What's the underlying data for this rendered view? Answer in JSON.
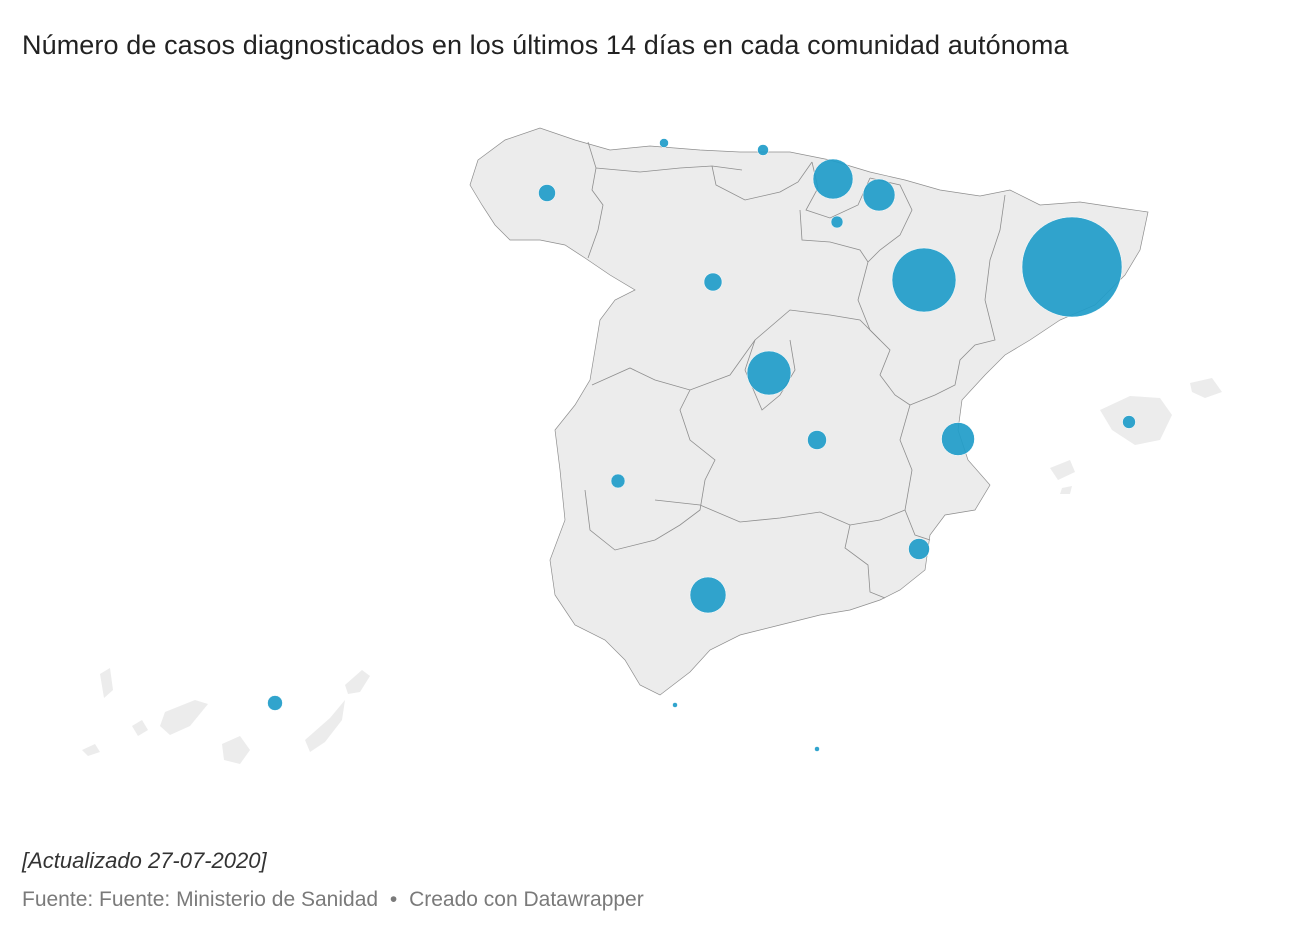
{
  "title": "Número de casos diagnosticados en los últimos 14 días en cada comunidad autónoma",
  "note": "[Actualizado 27-07-2020]",
  "source_prefix": "Fuente: Fuente: Ministerio de Sanidad",
  "separator": "•",
  "credit": "Creado con Datawrapper",
  "colors": {
    "bubble": "#1f9cc9",
    "land": "#ececec",
    "border": "#8e8e8e"
  },
  "map": {
    "type": "bubble-map",
    "bubbles": [
      {
        "region": "asturias"
      },
      {
        "region": "cantabria"
      },
      {
        "region": "galicia"
      },
      {
        "region": "pais-vasco"
      },
      {
        "region": "navarra"
      },
      {
        "region": "la-rioja"
      },
      {
        "region": "aragon"
      },
      {
        "region": "cataluna"
      },
      {
        "region": "castilla-y-leon"
      },
      {
        "region": "madrid"
      },
      {
        "region": "castilla-la-mancha"
      },
      {
        "region": "comunidad-valenciana"
      },
      {
        "region": "baleares"
      },
      {
        "region": "extremadura"
      },
      {
        "region": "murcia"
      },
      {
        "region": "andalucia"
      },
      {
        "region": "canarias"
      },
      {
        "region": "ceuta"
      },
      {
        "region": "melilla"
      }
    ]
  }
}
